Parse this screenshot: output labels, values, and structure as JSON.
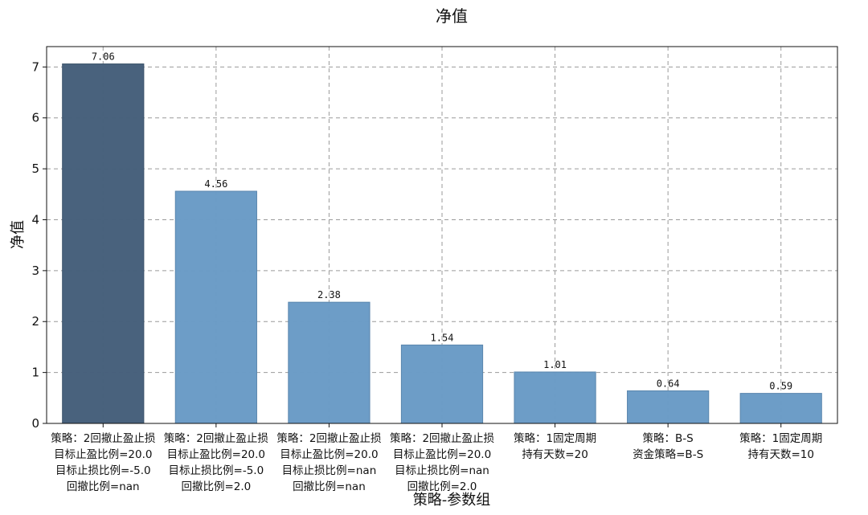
{
  "chart_data": {
    "type": "bar",
    "title": "净值",
    "xlabel": "策略-参数组",
    "ylabel": "净值",
    "ylim": [
      0,
      7.4
    ],
    "yticks": [
      0,
      1,
      2,
      3,
      4,
      5,
      6,
      7
    ],
    "grid": true,
    "categories": [
      [
        "策略：2回撤止盈止损",
        "目标止盈比例=20.0",
        "目标止损比例=-5.0",
        "回撤比例=nan"
      ],
      [
        "策略：2回撤止盈止损",
        "目标止盈比例=20.0",
        "目标止损比例=-5.0",
        "回撤比例=2.0"
      ],
      [
        "策略：2回撤止盈止损",
        "目标止盈比例=20.0",
        "目标止损比例=nan",
        "回撤比例=nan"
      ],
      [
        "策略：2回撤止盈止损",
        "目标止盈比例=20.0",
        "目标止损比例=nan",
        "回撤比例=2.0"
      ],
      [
        "策略：1固定周期",
        "持有天数=20"
      ],
      [
        "策略：B-S",
        "资金策略=B-S"
      ],
      [
        "策略：1固定周期",
        "持有天数=10"
      ]
    ],
    "values": [
      7.06,
      4.56,
      2.38,
      1.54,
      1.01,
      0.64,
      0.59
    ],
    "value_labels": [
      "7.06",
      "4.56",
      "2.38",
      "1.54",
      "1.01",
      "0.64",
      "0.59"
    ],
    "colors": {
      "highlight": "#455f7a",
      "bar": "#6a9bc6",
      "bar_edge": "#5a86ad"
    }
  }
}
